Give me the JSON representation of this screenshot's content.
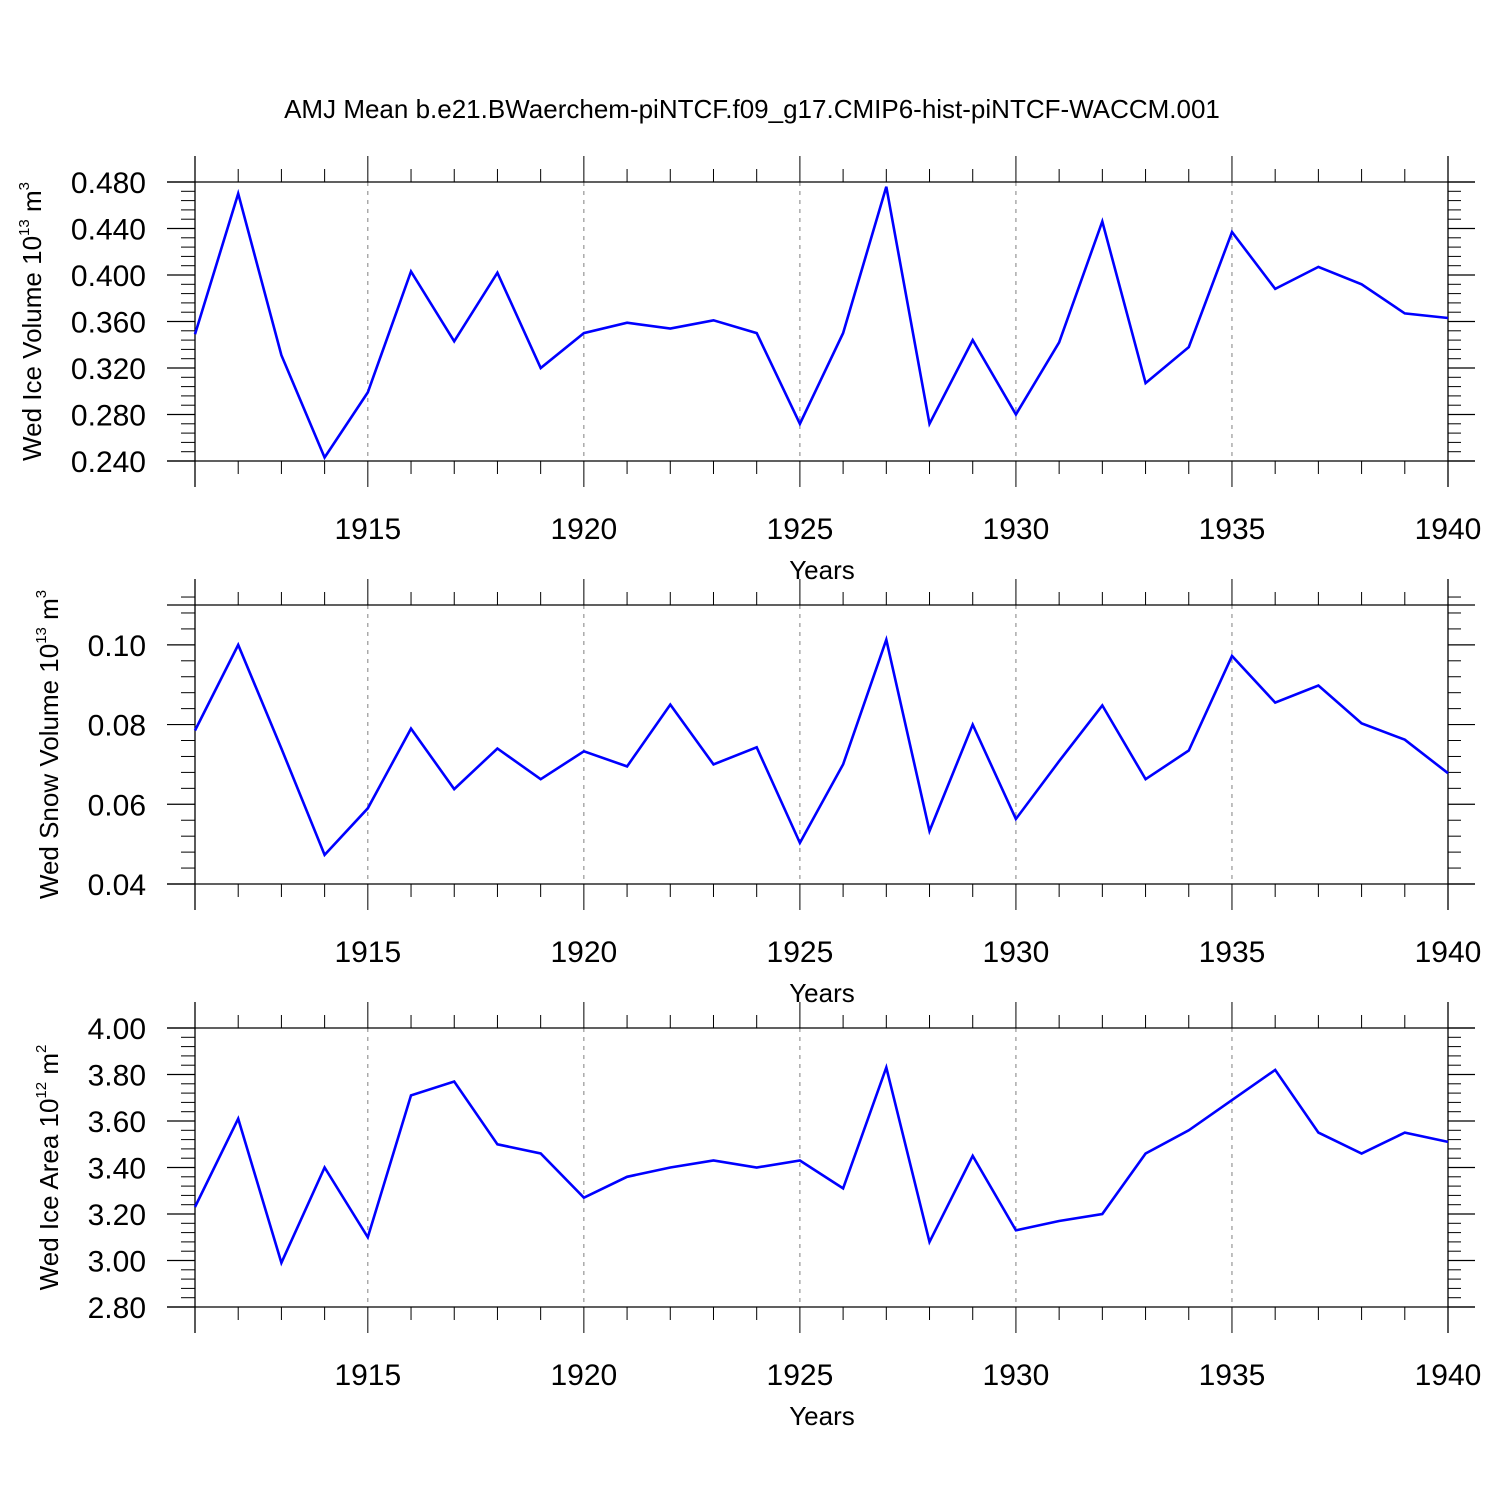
{
  "title": "AMJ Mean b.e21.BWaerchem-piNTCF.f09_g17.CMIP6-hist-piNTCF-WACCM.001",
  "colors": {
    "line": "#0000ff",
    "frame": "#000000",
    "grid": "#808080"
  },
  "chart_data": [
    {
      "type": "line",
      "series": [
        {
          "name": "Wed Ice Volume",
          "x": [
            1911,
            1912,
            1913,
            1914,
            1915,
            1916,
            1917,
            1918,
            1919,
            1920,
            1921,
            1922,
            1923,
            1924,
            1925,
            1926,
            1927,
            1928,
            1929,
            1930,
            1931,
            1932,
            1933,
            1934,
            1935,
            1936,
            1937,
            1938,
            1939,
            1940
          ],
          "values": [
            0.349,
            0.47,
            0.331,
            0.243,
            0.299,
            0.403,
            0.343,
            0.402,
            0.32,
            0.35,
            0.359,
            0.354,
            0.361,
            0.35,
            0.272,
            0.35,
            0.476,
            0.272,
            0.344,
            0.28,
            0.342,
            0.446,
            0.307,
            0.338,
            0.437,
            0.388,
            0.407,
            0.392,
            0.367,
            0.363
          ]
        }
      ],
      "xlim": [
        1911,
        1940
      ],
      "ylim": [
        0.24,
        0.48
      ],
      "x_ticks": [
        1915,
        1920,
        1925,
        1930,
        1935,
        1940
      ],
      "x_tick_labels": [
        "1915",
        "1920",
        "1925",
        "1930",
        "1935",
        "1940"
      ],
      "y_ticks": [
        0.24,
        0.28,
        0.32,
        0.36,
        0.4,
        0.44,
        0.48
      ],
      "y_tick_labels": [
        "0.240",
        "0.280",
        "0.320",
        "0.360",
        "0.400",
        "0.440",
        "0.480"
      ],
      "y_minor_step": 0.008,
      "xlabel": "Years",
      "ylabel_text": "Wed Ice Volume 10",
      "ylabel_exp": "13",
      "ylabel_unit": " m",
      "ylabel_unit_exp": "3",
      "grid": "vertical dashed at major x ticks"
    },
    {
      "type": "line",
      "series": [
        {
          "name": "Wed Snow Volume",
          "x": [
            1911,
            1912,
            1913,
            1914,
            1915,
            1916,
            1917,
            1918,
            1919,
            1920,
            1921,
            1922,
            1923,
            1924,
            1925,
            1926,
            1927,
            1928,
            1929,
            1930,
            1931,
            1932,
            1933,
            1934,
            1935,
            1936,
            1937,
            1938,
            1939,
            1940
          ],
          "values": [
            0.0785,
            0.1,
            0.074,
            0.0473,
            0.059,
            0.079,
            0.0638,
            0.074,
            0.0663,
            0.0733,
            0.0695,
            0.085,
            0.07,
            0.0743,
            0.0503,
            0.07,
            0.1013,
            0.0533,
            0.08,
            0.0563,
            0.0708,
            0.0848,
            0.0663,
            0.0735,
            0.0972,
            0.0855,
            0.0898,
            0.0803,
            0.0762,
            0.0678
          ]
        }
      ],
      "xlim": [
        1911,
        1940
      ],
      "ylim": [
        0.04,
        0.11
      ],
      "x_ticks": [
        1915,
        1920,
        1925,
        1930,
        1935,
        1940
      ],
      "x_tick_labels": [
        "1915",
        "1920",
        "1925",
        "1930",
        "1935",
        "1940"
      ],
      "y_ticks": [
        0.04,
        0.06,
        0.08,
        0.1
      ],
      "y_tick_labels": [
        "0.04",
        "0.06",
        "0.08",
        "0.10"
      ],
      "y_minor_step": 0.004,
      "xlabel": "Years",
      "ylabel_text": "Wed Snow Volume 10",
      "ylabel_exp": "13",
      "ylabel_unit": " m",
      "ylabel_unit_exp": "3",
      "grid": "vertical dashed at major x ticks"
    },
    {
      "type": "line",
      "series": [
        {
          "name": "Wed Ice Area",
          "x": [
            1911,
            1912,
            1913,
            1914,
            1915,
            1916,
            1917,
            1918,
            1919,
            1920,
            1921,
            1922,
            1923,
            1924,
            1925,
            1926,
            1927,
            1928,
            1929,
            1930,
            1931,
            1932,
            1933,
            1934,
            1935,
            1936,
            1937,
            1938,
            1939,
            1940
          ],
          "values": [
            3.23,
            3.61,
            2.99,
            3.4,
            3.1,
            3.71,
            3.77,
            3.5,
            3.46,
            3.27,
            3.36,
            3.4,
            3.43,
            3.4,
            3.43,
            3.31,
            3.83,
            3.08,
            3.45,
            3.13,
            3.17,
            3.2,
            3.46,
            3.56,
            3.69,
            3.82,
            3.55,
            3.46,
            3.55,
            3.51
          ]
        }
      ],
      "xlim": [
        1911,
        1940
      ],
      "ylim": [
        2.8,
        4.0
      ],
      "x_ticks": [
        1915,
        1920,
        1925,
        1930,
        1935,
        1940
      ],
      "x_tick_labels": [
        "1915",
        "1920",
        "1925",
        "1930",
        "1935",
        "1940"
      ],
      "y_ticks": [
        2.8,
        3.0,
        3.2,
        3.4,
        3.6,
        3.8,
        4.0
      ],
      "y_tick_labels": [
        "2.80",
        "3.00",
        "3.20",
        "3.40",
        "3.60",
        "3.80",
        "4.00"
      ],
      "y_minor_step": 0.04,
      "xlabel": "Years",
      "ylabel_text": "Wed Ice Area 10",
      "ylabel_exp": "12",
      "ylabel_unit": " m",
      "ylabel_unit_exp": "2",
      "grid": "vertical dashed at major x ticks"
    }
  ]
}
